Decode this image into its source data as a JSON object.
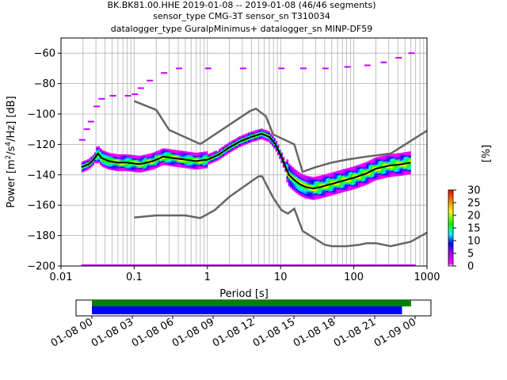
{
  "title": {
    "line1": "BK.BK81.00.HHE   2019-01-08 -- 2019-01-08  (46/46 segments)",
    "line2": "sensor_type CMG-3T sensor_sn T310034",
    "line3": "datalogger_type GuralpMinimus+ datalogger_sn MINP-DF59"
  },
  "chart_data": [
    {
      "type": "heatmap",
      "xlabel": "Period [s]",
      "ylabel": "Power [m²/s⁴/Hz] [dB]",
      "xscale": "log",
      "xlim": [
        0.01,
        1000
      ],
      "ylim": [
        -200,
        -50
      ],
      "x_ticks": [
        0.01,
        0.1,
        1,
        10,
        100,
        1000
      ],
      "x_tick_labels": [
        "0.01",
        "0.1",
        "1",
        "10",
        "100",
        "1000"
      ],
      "y_ticks": [
        -200,
        -180,
        -160,
        -140,
        -120,
        -100,
        -80,
        -60
      ],
      "y_tick_labels": [
        "−200",
        "−180",
        "−160",
        "−140",
        "−120",
        "−100",
        "−80",
        "−60"
      ],
      "grid": true,
      "colorbar": {
        "label": "[%]",
        "range": [
          0,
          30
        ],
        "ticks": [
          0,
          5,
          10,
          15,
          20,
          25,
          30
        ],
        "tick_labels": [
          "0",
          "5",
          "10",
          "15",
          "20",
          "25",
          "30"
        ],
        "colormap": "pqlx"
      },
      "series": [
        {
          "name": "",
          "color": "#000000",
          "points": [
            [
              0.019,
              -135
            ],
            [
              0.024,
              -133
            ],
            [
              0.028,
              -130
            ],
            [
              0.032,
              -126
            ],
            [
              0.036,
              -129
            ],
            [
              0.045,
              -131
            ],
            [
              0.06,
              -132
            ],
            [
              0.08,
              -132
            ],
            [
              0.12,
              -133
            ],
            [
              0.18,
              -131
            ],
            [
              0.25,
              -128
            ],
            [
              0.35,
              -129
            ],
            [
              0.5,
              -130
            ],
            [
              0.7,
              -131
            ],
            [
              1.0,
              -130
            ],
            [
              1.4,
              -127
            ],
            [
              2.0,
              -122
            ],
            [
              2.8,
              -118
            ],
            [
              4.0,
              -115
            ],
            [
              5.5,
              -113
            ],
            [
              7.0,
              -115
            ],
            [
              8.5,
              -120
            ],
            [
              10,
              -127
            ],
            [
              11.5,
              -134
            ],
            [
              13,
              -140
            ],
            [
              15,
              -143
            ],
            [
              18,
              -146
            ],
            [
              22,
              -148
            ],
            [
              28,
              -149
            ],
            [
              35,
              -148
            ],
            [
              50,
              -146
            ],
            [
              70,
              -144
            ],
            [
              100,
              -142
            ],
            [
              150,
              -139
            ],
            [
              200,
              -136
            ],
            [
              300,
              -134
            ],
            [
              450,
              -133
            ],
            [
              600,
              -132
            ]
          ]
        },
        {
          "name": "",
          "color": "#666666",
          "points": [
            [
              0.1,
              -91.5
            ],
            [
              0.2,
              -97.3
            ],
            [
              0.3,
              -110.5
            ],
            [
              0.8,
              -119.8
            ],
            [
              3.8,
              -98.1
            ],
            [
              4.6,
              -96.5
            ],
            [
              6.3,
              -101.5
            ],
            [
              7.9,
              -113.4
            ],
            [
              15.4,
              -120
            ],
            [
              20,
              -138
            ],
            [
              30,
              -135
            ],
            [
              50,
              -132
            ],
            [
              80,
              -130
            ],
            [
              150,
              -128
            ],
            [
              320,
              -126
            ],
            [
              1000,
              -111
            ]
          ]
        },
        {
          "name": "",
          "color": "#666666",
          "points": [
            [
              0.1,
              -168.1
            ],
            [
              0.2,
              -166.7
            ],
            [
              0.5,
              -166.7
            ],
            [
              0.8,
              -168.5
            ],
            [
              1.26,
              -163.2
            ],
            [
              2.0,
              -154.5
            ],
            [
              3.8,
              -145
            ],
            [
              5.0,
              -141
            ],
            [
              5.6,
              -141
            ],
            [
              7.9,
              -155
            ],
            [
              10.3,
              -163.3
            ],
            [
              12.6,
              -165.5
            ],
            [
              15.4,
              -162.3
            ],
            [
              20,
              -177
            ],
            [
              40,
              -186
            ],
            [
              50,
              -187
            ],
            [
              80,
              -187
            ],
            [
              120,
              -186
            ],
            [
              150,
              -185
            ],
            [
              200,
              -185
            ],
            [
              320,
              -187
            ],
            [
              600,
              -184
            ],
            [
              1000,
              -178
            ]
          ]
        }
      ],
      "noise_band_upper": [
        [
          0.019,
          -117
        ],
        [
          0.022,
          -110
        ],
        [
          0.025,
          -105
        ],
        [
          0.03,
          -95
        ],
        [
          0.035,
          -90
        ],
        [
          0.05,
          -88
        ],
        [
          0.08,
          -88
        ],
        [
          0.1,
          -87
        ],
        [
          0.12,
          -83
        ],
        [
          0.16,
          -78
        ],
        [
          0.25,
          -73
        ],
        [
          0.4,
          -70
        ],
        [
          1,
          -70
        ],
        [
          3,
          -70
        ],
        [
          10,
          -70
        ],
        [
          20,
          -70
        ],
        [
          40,
          -70
        ],
        [
          80,
          -69
        ],
        [
          150,
          -68
        ],
        [
          250,
          -66
        ],
        [
          400,
          -63
        ],
        [
          600,
          -60
        ]
      ]
    },
    {
      "type": "bar",
      "x_tick_labels": [
        "01-08 00",
        "01-08 03",
        "01-08 06",
        "01-08 09",
        "01-08 12",
        "01-08 15",
        "01-08 18",
        "01-08 21",
        "01-09 00"
      ],
      "data_coverage_hours": [
        0,
        23.7
      ],
      "psd_coverage_hours": [
        0,
        23.5
      ],
      "colors": {
        "data": "#008000",
        "psd": "#0000ff"
      }
    }
  ]
}
